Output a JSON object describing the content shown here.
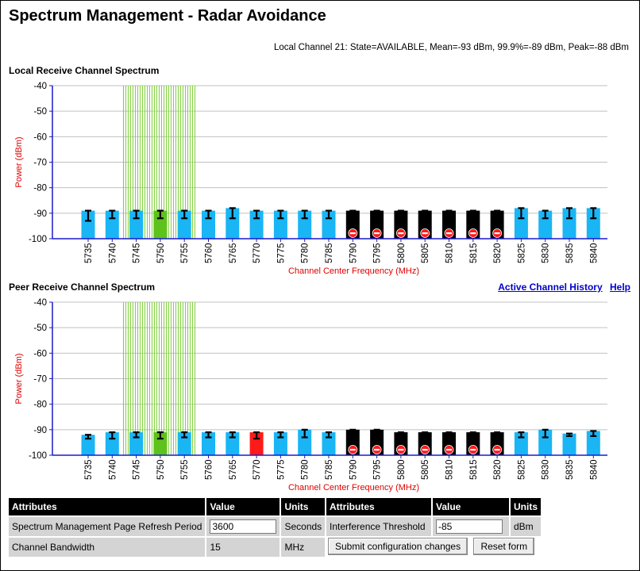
{
  "page": {
    "title": "Spectrum Management - Radar Avoidance"
  },
  "status": {
    "text": "Local Channel 21: State=AVAILABLE, Mean=-93 dBm, 99.9%=-89 dBm, Peak=-88 dBm"
  },
  "links": {
    "history": "Active Channel History",
    "help": "Help"
  },
  "colors": {
    "available": "#1ab5f5",
    "active": "#5ec21c",
    "barred": "#000000",
    "interference": "#ff1a1a",
    "axis": "#1a1acc",
    "label": "#e00000"
  },
  "chart_data": [
    {
      "type": "bar",
      "title": "Local Receive Channel Spectrum",
      "xlabel": "Channel Center Frequency (MHz)",
      "ylabel": "Power (dBm)",
      "ylim": [
        -100,
        -40
      ],
      "yticks": [
        -40,
        -50,
        -60,
        -70,
        -80,
        -90,
        -100
      ],
      "categories": [
        5735,
        5740,
        5745,
        5750,
        5755,
        5760,
        5765,
        5770,
        5775,
        5780,
        5785,
        5790,
        5795,
        5800,
        5805,
        5810,
        5815,
        5820,
        5825,
        5830,
        5835,
        5840
      ],
      "mean": [
        -90,
        -90,
        -90.5,
        -90.5,
        -90.5,
        -90,
        -89.5,
        -90,
        -90,
        -90,
        -90,
        -89.5,
        -89.5,
        -89.5,
        -89.5,
        -89.5,
        -89.5,
        -89.5,
        -89.5,
        -90,
        -89.5,
        -89.5
      ],
      "low": [
        -93,
        -92,
        -92,
        -92,
        -92,
        -92,
        -92,
        -92,
        -92,
        -92,
        -92,
        -90,
        -90,
        -91,
        -90,
        -90,
        -90,
        -90,
        -92,
        -92,
        -92,
        -92
      ],
      "high": [
        -89,
        -89,
        -89,
        -89,
        -89,
        -89,
        -88,
        -89,
        -89,
        -89,
        -89,
        -89,
        -89,
        -89,
        -89,
        -89,
        -89,
        -89,
        -88,
        -89,
        -88,
        -88
      ],
      "status": [
        "available",
        "available",
        "available",
        "active",
        "available",
        "available",
        "available",
        "available",
        "available",
        "available",
        "available",
        "barred",
        "barred",
        "barred",
        "barred",
        "barred",
        "barred",
        "barred",
        "available",
        "available",
        "available",
        "available"
      ],
      "radar_region": [
        5745,
        5755
      ]
    },
    {
      "type": "bar",
      "title": "Peer Receive Channel Spectrum",
      "xlabel": "Channel Center Frequency (MHz)",
      "ylabel": "Power (dBm)",
      "ylim": [
        -100,
        -40
      ],
      "yticks": [
        -40,
        -50,
        -60,
        -70,
        -80,
        -90,
        -100
      ],
      "categories": [
        5735,
        5740,
        5745,
        5750,
        5755,
        5760,
        5765,
        5770,
        5775,
        5780,
        5785,
        5790,
        5795,
        5800,
        5805,
        5810,
        5815,
        5820,
        5825,
        5830,
        5835,
        5840
      ],
      "mean": [
        -92.5,
        -92,
        -92,
        -92,
        -92,
        -92,
        -92,
        -92,
        -92,
        -91.5,
        -92,
        -91,
        -91,
        -91,
        -91,
        -91,
        -91,
        -91,
        -91.5,
        -91.5,
        -92,
        -91.5
      ],
      "low": [
        -93.5,
        -93.5,
        -93,
        -93.5,
        -93,
        -93,
        -93,
        -93.5,
        -93,
        -93,
        -93,
        -92,
        -92,
        -92,
        -92,
        -92,
        -92,
        -92,
        -93,
        -93,
        -92.5,
        -92.5
      ],
      "high": [
        -92,
        -91,
        -91,
        -91,
        -91,
        -91,
        -91,
        -91,
        -91,
        -90,
        -91,
        -90,
        -90,
        -91,
        -91,
        -91,
        -91,
        -91,
        -91,
        -90,
        -91.5,
        -90.5
      ],
      "status": [
        "available",
        "available",
        "available",
        "active",
        "available",
        "available",
        "available",
        "interference",
        "available",
        "available",
        "available",
        "barred",
        "barred",
        "barred",
        "barred",
        "barred",
        "barred",
        "barred",
        "available",
        "available",
        "available",
        "available"
      ],
      "radar_region": [
        5745,
        5755
      ]
    }
  ],
  "table_left": {
    "headers": [
      "Attributes",
      "Value",
      "Units"
    ],
    "rows": [
      {
        "attribute": "Spectrum Management Page Refresh Period",
        "value": "3600",
        "units": "Seconds"
      },
      {
        "attribute": "Channel Bandwidth",
        "value": "15",
        "units": "MHz"
      }
    ]
  },
  "table_right": {
    "headers": [
      "Attributes",
      "Value",
      "Units"
    ],
    "rows": [
      {
        "attribute": "Interference Threshold",
        "value": "-85",
        "units": "dBm"
      }
    ],
    "submit_label": "Submit configuration changes",
    "reset_label": "Reset form"
  }
}
